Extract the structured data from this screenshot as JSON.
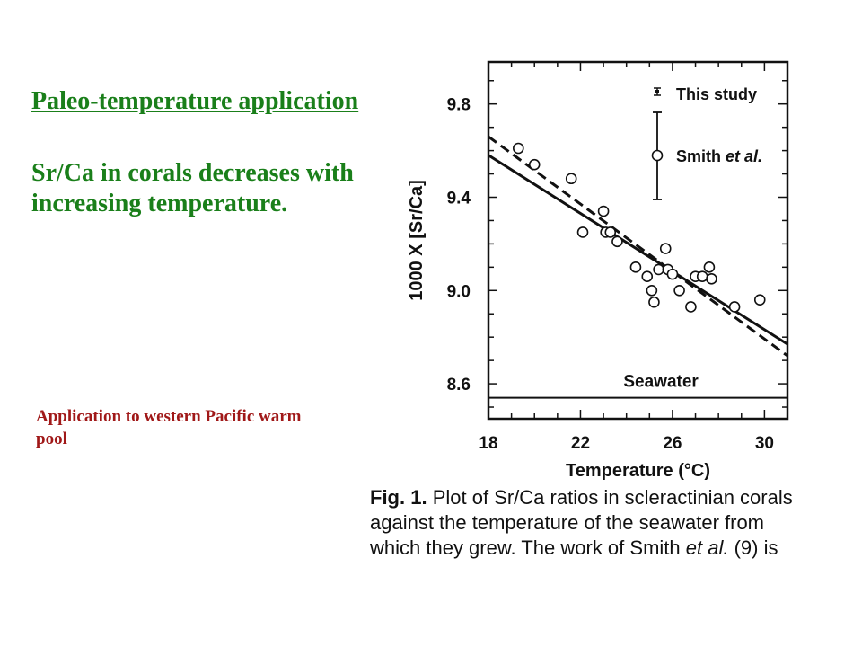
{
  "slide": {
    "title": "Paleo-temperature application",
    "body": "Sr/Ca in corals decreases with increasing temperature.",
    "subtitle": "Application to western Pacific warm pool",
    "title_color": "#1a7f1a",
    "subtitle_color": "#a01818"
  },
  "caption": {
    "fig_label": "Fig. 1.",
    "text_before": "Plot of Sr/Ca ratios in scleractinian corals against the temperature of the seawater from which they grew. The work of Smith ",
    "et_al": "et al.",
    "text_after": " (9) is"
  },
  "chart_data": {
    "type": "scatter",
    "xlabel": "Temperature (°C)",
    "ylabel": "1000 X [Sr/Ca]",
    "xlim": [
      18,
      31
    ],
    "ylim": [
      8.45,
      9.98
    ],
    "xticks": [
      18,
      22,
      26,
      30
    ],
    "yticks": [
      8.6,
      9.0,
      9.4,
      9.8
    ],
    "xtick_labels": [
      "18",
      "22",
      "26",
      "30"
    ],
    "ytick_labels": [
      "8.6",
      "9.0",
      "9.4",
      "9.8"
    ],
    "legend": {
      "placement": "top-right",
      "entries": [
        {
          "label": "This study",
          "marker": "small-errorbar"
        },
        {
          "label": "Smith",
          "label_italic": "et al.",
          "marker": "open-circle-errorbar"
        }
      ]
    },
    "series": [
      {
        "name": "Smith et al.",
        "marker": "open-circle",
        "points": [
          [
            19.3,
            9.61
          ],
          [
            20.0,
            9.54
          ],
          [
            21.6,
            9.48
          ],
          [
            22.1,
            9.25
          ],
          [
            23.0,
            9.34
          ],
          [
            23.1,
            9.25
          ],
          [
            23.3,
            9.25
          ],
          [
            23.6,
            9.21
          ],
          [
            24.4,
            9.1
          ],
          [
            24.9,
            9.06
          ],
          [
            25.1,
            9.0
          ],
          [
            25.2,
            8.95
          ],
          [
            25.4,
            9.09
          ],
          [
            25.7,
            9.18
          ],
          [
            25.8,
            9.09
          ],
          [
            26.0,
            9.07
          ],
          [
            26.3,
            9.0
          ],
          [
            26.8,
            8.93
          ],
          [
            27.0,
            9.06
          ],
          [
            27.3,
            9.06
          ],
          [
            27.6,
            9.1
          ],
          [
            27.7,
            9.05
          ],
          [
            28.7,
            8.93
          ],
          [
            29.8,
            8.96
          ]
        ]
      }
    ],
    "lines": [
      {
        "name": "This study fit",
        "style": "solid",
        "x": [
          18.0,
          31.0
        ],
        "y": [
          9.58,
          8.77
        ]
      },
      {
        "name": "Smith et al. fit",
        "style": "dashed",
        "x": [
          18.0,
          31.0
        ],
        "y": [
          9.66,
          8.72
        ]
      }
    ],
    "annotations": [
      {
        "label": "Seawater",
        "value": 8.54,
        "style": "horizontal-line"
      }
    ]
  }
}
